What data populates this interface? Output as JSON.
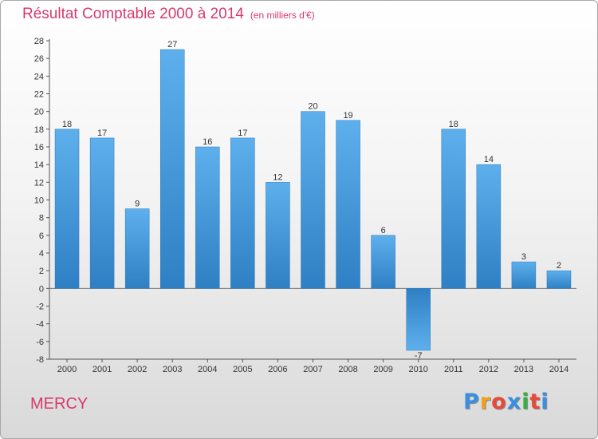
{
  "chart_data": {
    "type": "bar",
    "title": "Résultat Comptable 2000 à 2014",
    "subtitle": "(en milliers d'€)",
    "categories": [
      "2000",
      "2001",
      "2002",
      "2003",
      "2004",
      "2005",
      "2006",
      "2007",
      "2008",
      "2009",
      "2010",
      "2011",
      "2012",
      "2013",
      "2014"
    ],
    "values": [
      18,
      17,
      9,
      27,
      16,
      17,
      12,
      20,
      19,
      6,
      -7,
      18,
      14,
      3,
      2
    ],
    "y_ticks": [
      28,
      26,
      24,
      22,
      20,
      18,
      16,
      14,
      12,
      10,
      8,
      6,
      4,
      2,
      0,
      -2,
      -4,
      -6,
      -8
    ],
    "ylim": [
      -8,
      28
    ],
    "xlabel": "",
    "ylabel": "",
    "grid": false,
    "bar_color": "#4a9fe0"
  },
  "footer": {
    "town": "MERCY",
    "logo": [
      "P",
      "r",
      "o",
      "x",
      "i",
      "t",
      "i"
    ],
    "logo_colors": [
      "#3a8fe0",
      "#f0a020",
      "#e84a3a",
      "#3a8fe0",
      "#38b040",
      "#e84a3a",
      "#3a8fe0"
    ]
  }
}
